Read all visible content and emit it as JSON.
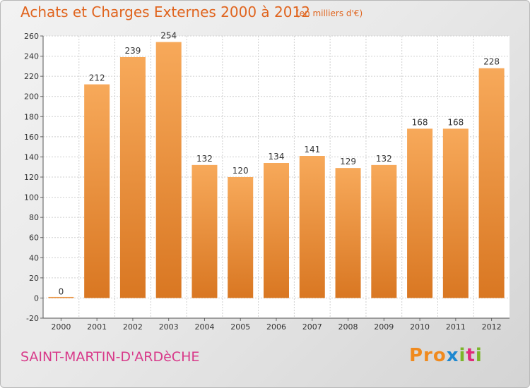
{
  "title": "Achats et Charges Externes 2000 à 2012",
  "subtitle": "(en milliers d'€)",
  "commune": "SAINT-MARTIN-D'ARDèCHE",
  "logo": "Proxiti",
  "colors": {
    "bar_top": "#f7a95a",
    "bar_bottom": "#d97722",
    "title": "#e0641e",
    "commune": "#d83a8a"
  },
  "chart_data": {
    "type": "bar",
    "title": "Achats et Charges Externes 2000 à 2012",
    "subtitle": "(en milliers d'€)",
    "categories": [
      "2000",
      "2001",
      "2002",
      "2003",
      "2004",
      "2005",
      "2006",
      "2007",
      "2008",
      "2009",
      "2010",
      "2011",
      "2012"
    ],
    "values": [
      0,
      212,
      239,
      254,
      132,
      120,
      134,
      141,
      129,
      132,
      168,
      168,
      228
    ],
    "xlabel": "",
    "ylabel": "",
    "ylim": [
      -20,
      260
    ],
    "yticks": [
      -20,
      0,
      20,
      40,
      60,
      80,
      100,
      120,
      140,
      160,
      180,
      200,
      220,
      240,
      260
    ],
    "grid": true,
    "legend": "none"
  }
}
